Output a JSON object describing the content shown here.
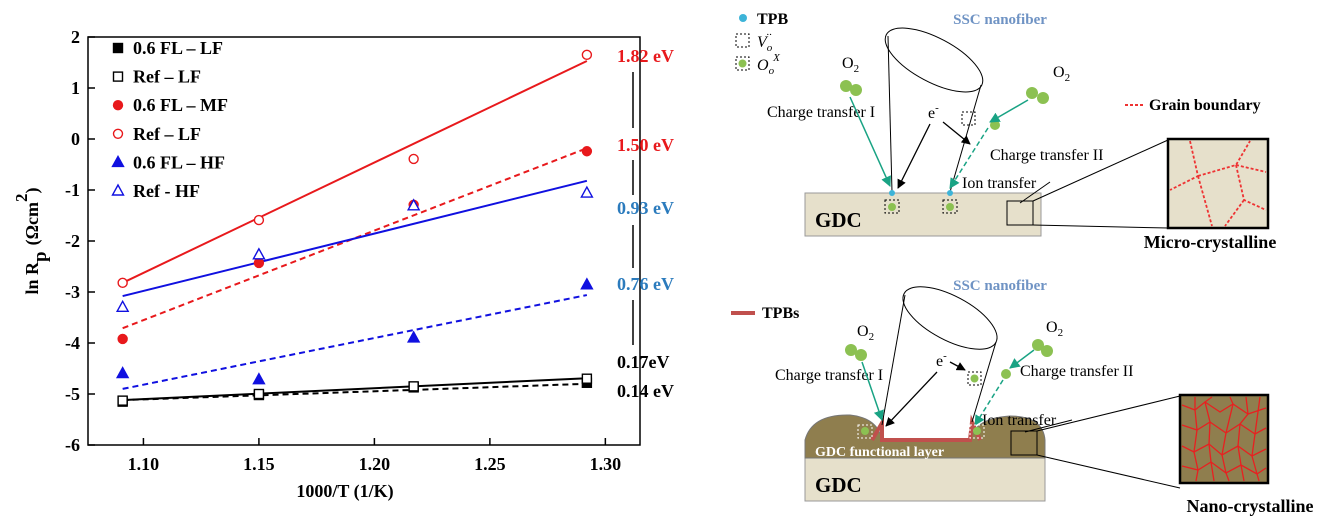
{
  "chart_data": {
    "type": "scatter",
    "xlabel": "1000/T (1/K)",
    "ylabel": {
      "main": "ln R",
      "sub": "p",
      "unit": "(Ωcm",
      "sup": "2",
      "close": ")"
    },
    "x": [
      1.091,
      1.15,
      1.217,
      1.292
    ],
    "xlim": [
      1.076,
      1.315
    ],
    "xticks": [
      {
        "value": 1.1,
        "label": "1.10"
      },
      1.15,
      {
        "value": 1.2,
        "label": "1.20"
      },
      1.25,
      {
        "value": 1.3,
        "label": "1.30"
      }
    ],
    "ylim": [
      -6,
      2
    ],
    "yticks": [
      -6,
      -5,
      -4,
      -3,
      -2,
      -1,
      0,
      1,
      2
    ],
    "series": [
      {
        "name": "0.6 FL – LF",
        "color": "#000000",
        "marker": "square",
        "filled": true,
        "values": [
          -5.15,
          -5.02,
          -4.87,
          -4.78
        ],
        "fit": [
          -5.12,
          -4.8
        ],
        "dashed": true
      },
      {
        "name": "Ref – LF",
        "color": "#000000",
        "marker": "square",
        "filled": false,
        "values": [
          -5.13,
          -5.0,
          -4.85,
          -4.7
        ],
        "fit": [
          -5.12,
          -4.69
        ],
        "dashed": false
      },
      {
        "name": "0.6 FL – MF",
        "color": "#e8191c",
        "marker": "circle",
        "filled": true,
        "values": [
          -3.92,
          -2.43,
          -1.29,
          -0.24
        ],
        "fit": [
          -3.71,
          -0.18
        ],
        "dashed": true
      },
      {
        "name": "Ref – LF",
        "color": "#e8191c",
        "marker": "circle",
        "filled": false,
        "values": [
          -2.82,
          -1.59,
          -0.39,
          1.65
        ],
        "fit": [
          -2.82,
          1.53
        ],
        "dashed": false
      },
      {
        "name": "0.6 FL – HF",
        "color": "#1010e0",
        "marker": "triangle",
        "filled": true,
        "values": [
          -4.6,
          -4.72,
          -3.9,
          -2.86
        ],
        "fit": [
          -4.9,
          -3.06
        ],
        "dashed": true
      },
      {
        "name": "Ref - HF",
        "color": "#1010e0",
        "marker": "triangle",
        "filled": false,
        "values": [
          -3.3,
          -2.27,
          -1.31,
          -1.06
        ],
        "fit": [
          -3.08,
          -0.82
        ],
        "dashed": false
      }
    ],
    "annotations": [
      {
        "text": "1.82 eV",
        "color": "#e8191c"
      },
      {
        "text": "1.50 eV",
        "color": "#e8191c"
      },
      {
        "text": "0.93 eV",
        "color": "#2b7bbd"
      },
      {
        "text": "0.76 eV",
        "color": "#2b7bbd"
      },
      {
        "text": "0.17eV",
        "color": "#000000"
      },
      {
        "text": "0.14 eV",
        "color": "#000000"
      }
    ]
  },
  "diagram": {
    "top": {
      "legend": {
        "tpb": "TPB",
        "vacancy": {
          "base": "V",
          "sub": "o",
          "sup": "··"
        },
        "oxygen": {
          "base": "O",
          "sub": "o",
          "sup": "X"
        }
      },
      "fiber": "SSC nanofiber",
      "o2_left": {
        "base": "O",
        "sub": "2"
      },
      "o2_right": {
        "base": "O",
        "sub": "2"
      },
      "electron": {
        "base": "e",
        "sup": "-"
      },
      "ct1": "Charge transfer I",
      "ct2": "Charge transfer II",
      "ion": "Ion transfer",
      "gdc": "GDC",
      "grain": "Grain boundary",
      "caption": "Micro-crystalline"
    },
    "bottom": {
      "tpbs": "TPBs",
      "fiber": "SSC nanofiber",
      "o2_left": {
        "base": "O",
        "sub": "2"
      },
      "o2_right": {
        "base": "O",
        "sub": "2"
      },
      "electron": {
        "base": "e",
        "sup": "-"
      },
      "ct1": "Charge transfer I",
      "ct2": "Charge transfer II",
      "ion": "Ion transfer",
      "layer": "GDC functional layer",
      "gdc": "GDC",
      "caption": "Nano-crystalline"
    }
  }
}
